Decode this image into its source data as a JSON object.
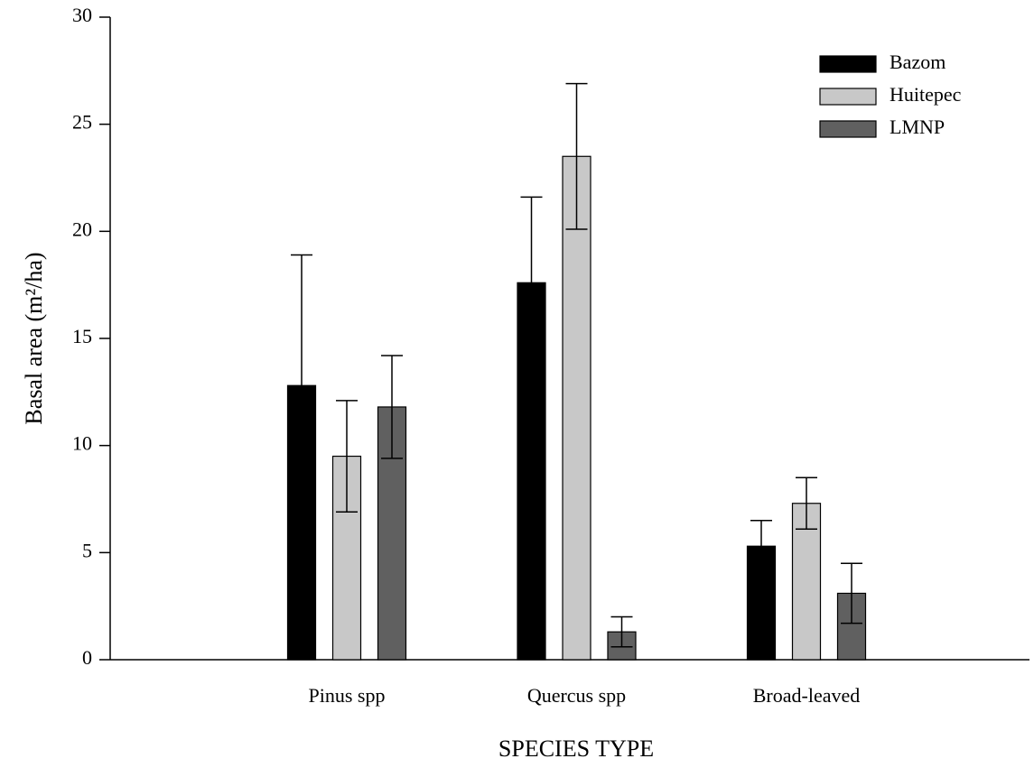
{
  "chart_data": {
    "type": "bar",
    "ylabel": "Basal area (m²/ha)",
    "xlabel": "SPECIES TYPE",
    "categories": [
      "Pinus spp",
      "Quercus spp",
      "Broad-leaved"
    ],
    "series": [
      {
        "name": "Bazom",
        "color": "#000000",
        "values": [
          12.8,
          17.6,
          5.3
        ],
        "errors": [
          6.1,
          4.0,
          1.2
        ]
      },
      {
        "name": "Huitepec",
        "color": "#c8c8c8",
        "values": [
          9.5,
          23.5,
          7.3
        ],
        "errors": [
          2.6,
          3.4,
          1.2
        ]
      },
      {
        "name": "LMNP",
        "color": "#606060",
        "values": [
          11.8,
          1.3,
          3.1
        ],
        "errors": [
          2.4,
          0.7,
          1.4
        ]
      }
    ],
    "ylim": [
      0,
      30
    ],
    "yticks": [
      0,
      5,
      10,
      15,
      20,
      25,
      30
    ],
    "legend": "upper right"
  }
}
